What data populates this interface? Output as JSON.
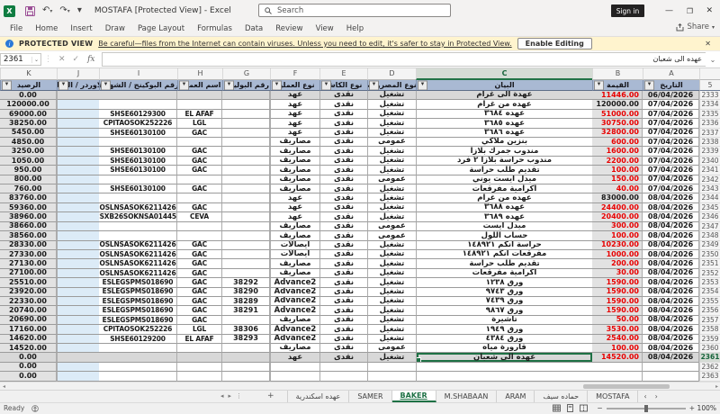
{
  "titlebar": {
    "title": "MOSTAFA  [Protected View] - Excel",
    "search_placeholder": "Search",
    "signin": "Sign in"
  },
  "menubar": {
    "tabs": [
      "File",
      "Home",
      "Insert",
      "Draw",
      "Page Layout",
      "Formulas",
      "Data",
      "Review",
      "View",
      "Help"
    ],
    "share": "Share"
  },
  "banner": {
    "label": "PROTECTED VIEW",
    "message": "Be careful—files from the Internet can contain viruses. Unless you need to edit, it's safer to stay in Protected View.",
    "button": "Enable Editing"
  },
  "formula_bar": {
    "name_box": "2361",
    "content": "عهده الى شعبان"
  },
  "grid": {
    "column_letters": [
      "A",
      "B",
      "C",
      "D",
      "E",
      "F",
      "G",
      "H",
      "I",
      "J",
      "K"
    ],
    "selected_column": "C",
    "header_row_number": "5",
    "headers": {
      "a": "التاريخ",
      "b": "القيمة",
      "c": "البيان",
      "d": "نوع المصروف",
      "e": "نوع الكاش",
      "f": "نوع العملية",
      "g": "رقم البوليصا",
      "h": "اسم العميل",
      "i": "رقم البوكينج / الشهادة",
      "j": "رقم الاوردر / النقلة min",
      "k": "الرصيد"
    },
    "rows": [
      {
        "n": "2333",
        "a": "06/04/2026",
        "b": "11446.00",
        "red": 1,
        "c": "عهدة الى غرام",
        "d": "تشغيل",
        "e": "نقدى",
        "f": "عهد",
        "k": "0.00",
        "shade": 1
      },
      {
        "n": "2334",
        "a": "07/04/2026",
        "b": "120000.00",
        "c": "عهده من غرام",
        "d": "تشغيل",
        "e": "نقدى",
        "f": "عهد",
        "k": "120000.00"
      },
      {
        "n": "2335",
        "a": "07/04/2026",
        "b": "51000.00",
        "red": 1,
        "c": "عهده ٣٦٨٤",
        "d": "تشغيل",
        "e": "نقدى",
        "f": "عهد",
        "h": "EL AFAF",
        "i": "SHSE60129300",
        "k": "69000.00"
      },
      {
        "n": "2336",
        "a": "07/04/2026",
        "b": "30750.00",
        "red": 1,
        "c": "عهده ٣٦٨٥",
        "d": "تشغيل",
        "e": "نقدى",
        "f": "عهد",
        "h": "LGL",
        "i": "CPITAOSOK252226",
        "k": "38250.00"
      },
      {
        "n": "2337",
        "a": "07/04/2026",
        "b": "32800.00",
        "red": 1,
        "c": "عهده ٣٦٨٦",
        "d": "تشغيل",
        "e": "نقدى",
        "f": "عهد",
        "h": "GAC",
        "i": "SHSE60130100",
        "k": "5450.00"
      },
      {
        "n": "2338",
        "a": "07/04/2026",
        "b": "600.00",
        "red": 1,
        "c": "بنزين ملاكي",
        "d": "عمومى",
        "e": "نقدى",
        "f": "مصاريف",
        "k": "4850.00"
      },
      {
        "n": "2339",
        "a": "07/04/2026",
        "b": "1600.00",
        "red": 1,
        "c": "مندوب جمرك بلازا",
        "d": "تشغيل",
        "e": "نقدى",
        "f": "مصاريف",
        "h": "GAC",
        "i": "SHSE60130100",
        "k": "3250.00"
      },
      {
        "n": "2340",
        "a": "07/04/2026",
        "b": "2200.00",
        "red": 1,
        "c": "مندوب حراسة بلازا ٢ فرد",
        "d": "تشغيل",
        "e": "نقدى",
        "f": "مصاريف",
        "h": "GAC",
        "i": "SHSE60130100",
        "k": "1050.00"
      },
      {
        "n": "2341",
        "a": "07/04/2026",
        "b": "100.00",
        "red": 1,
        "c": "تقديم طلب حراسة",
        "d": "تشغيل",
        "e": "نقدى",
        "f": "مصاريف",
        "h": "GAC",
        "i": "SHSE60130100",
        "k": "950.00"
      },
      {
        "n": "2342",
        "a": "07/04/2026",
        "b": "150.00",
        "red": 1,
        "c": "ميدل ايست يوني",
        "d": "عمومى",
        "e": "نقدى",
        "f": "مصاريف",
        "k": "800.00"
      },
      {
        "n": "2343",
        "a": "07/04/2026",
        "b": "40.00",
        "red": 1,
        "c": "اكرامية مفرقعات",
        "d": "تشغيل",
        "e": "نقدى",
        "f": "مصاريف",
        "h": "GAC",
        "i": "SHSE60130100",
        "k": "760.00"
      },
      {
        "n": "2344",
        "a": "08/04/2026",
        "b": "83000.00",
        "c": "عهده من غرام",
        "d": "تشغيل",
        "e": "نقدى",
        "f": "عهد",
        "k": "83760.00"
      },
      {
        "n": "2345",
        "a": "08/04/2026",
        "b": "24400.00",
        "red": 1,
        "c": "عهده ٣٦٨٨",
        "d": "تشغيل",
        "e": "نقدى",
        "f": "عهد",
        "h": "GAC",
        "i": "OSLNSASOK6211426",
        "k": "59360.00"
      },
      {
        "n": "2346",
        "a": "08/04/2026",
        "b": "20400.00",
        "red": 1,
        "c": "عهده ٣٦٨٩",
        "d": "تشغيل",
        "e": "نقدى",
        "f": "عهد",
        "h": "CEVA",
        "i": "CSXB26SOKNSA014455",
        "k": "38960.00"
      },
      {
        "n": "2347",
        "a": "08/04/2026",
        "b": "300.00",
        "red": 1,
        "c": "ميدل ايست",
        "d": "عمومى",
        "e": "نقدى",
        "f": "مصاريف",
        "k": "38660.00"
      },
      {
        "n": "2348",
        "a": "08/04/2026",
        "b": "100.00",
        "red": 1,
        "c": "حساب اللول",
        "d": "عمومى",
        "e": "نقدى",
        "f": "مصاريف",
        "k": "38560.00"
      },
      {
        "n": "2349",
        "a": "08/04/2026",
        "b": "10230.00",
        "red": 1,
        "c": "حراسة انكم ١٤٨٩٢١",
        "d": "تشغيل",
        "e": "نقدى",
        "f": "ايصالات",
        "h": "GAC",
        "i": "OSLNSASOK6211426",
        "k": "28330.00"
      },
      {
        "n": "2350",
        "a": "08/04/2026",
        "b": "1000.00",
        "red": 1,
        "c": "مفرقعات انكم ١٤٨٩٢١",
        "d": "تشغيل",
        "e": "نقدى",
        "f": "ايصالات",
        "h": "GAC",
        "i": "OSLNSASOK6211426",
        "k": "27330.00"
      },
      {
        "n": "2351",
        "a": "08/04/2026",
        "b": "200.00",
        "red": 1,
        "c": "تقديم طلب حراسة",
        "d": "تشغيل",
        "e": "نقدى",
        "f": "مصاريف",
        "h": "GAC",
        "i": "OSLNSASOK6211426",
        "k": "27130.00"
      },
      {
        "n": "2352",
        "a": "08/04/2026",
        "b": "30.00",
        "red": 1,
        "c": "اكرامية مفرقعات",
        "d": "تشغيل",
        "e": "نقدى",
        "f": "مصاريف",
        "h": "GAC",
        "i": "OSLNSASOK6211426",
        "k": "27100.00"
      },
      {
        "n": "2353",
        "a": "08/04/2026",
        "b": "1590.00",
        "red": 1,
        "c": "ورق ١٢٣٨",
        "d": "تشغيل",
        "e": "نقدى",
        "f": "Advance2",
        "g": "38292",
        "h": "GAC",
        "i": "ESLEGSPMS018690",
        "k": "25510.00"
      },
      {
        "n": "2354",
        "a": "08/04/2026",
        "b": "1590.00",
        "red": 1,
        "c": "ورق ٩٧٤٣",
        "d": "تشغيل",
        "e": "نقدى",
        "f": "Advance2",
        "g": "38290",
        "h": "GAC",
        "i": "ESLEGSPMS018690",
        "k": "23920.00"
      },
      {
        "n": "2355",
        "a": "08/04/2026",
        "b": "1590.00",
        "red": 1,
        "c": "ورق ٧٤٣٩",
        "d": "تشغيل",
        "e": "نقدى",
        "f": "Advance2",
        "g": "38289",
        "h": "GAC",
        "i": "ESLEGSPMS018690",
        "k": "22330.00"
      },
      {
        "n": "2356",
        "a": "08/04/2026",
        "b": "1590.00",
        "red": 1,
        "c": "ورق ٩٨٦٧",
        "d": "تشغيل",
        "e": "نقدى",
        "f": "Advance2",
        "g": "38291",
        "h": "GAC",
        "i": "ESLEGSPMS018690",
        "k": "20740.00"
      },
      {
        "n": "2357",
        "a": "08/04/2026",
        "b": "50.00",
        "red": 1,
        "c": "تأشيرة",
        "d": "تشغيل",
        "e": "نقدى",
        "f": "مصاريف",
        "h": "GAC",
        "i": "ESLEGSPMS018690",
        "k": "20690.00"
      },
      {
        "n": "2358",
        "a": "08/04/2026",
        "b": "3530.00",
        "red": 1,
        "c": "ورق ١٩٤٩",
        "d": "تشغيل",
        "e": "نقدى",
        "f": "Advance2",
        "g": "38306",
        "h": "LGL",
        "i": "CPITAOSOK252226",
        "k": "17160.00"
      },
      {
        "n": "2359",
        "a": "08/04/2026",
        "b": "2540.00",
        "red": 1,
        "c": "ورق ٤٣٨٤",
        "d": "تشغيل",
        "e": "نقدى",
        "f": "Advance2",
        "g": "38293",
        "h": "EL AFAF",
        "i": "SHSE60129200",
        "k": "14620.00"
      },
      {
        "n": "2360",
        "a": "08/04/2026",
        "b": "100.00",
        "red": 1,
        "c": "قارورة مياه",
        "d": "عمومى",
        "e": "نقدى",
        "f": "مصاريف",
        "k": "14520.00"
      },
      {
        "n": "2361",
        "a": "08/04/2026",
        "b": "14520.00",
        "red": 1,
        "c": "عهده الى شعبان",
        "d": "تشغيل",
        "e": "نقدى",
        "f": "عهد",
        "k": "0.00",
        "shade": 1,
        "sel": 1
      },
      {
        "n": "2362",
        "k": "0.00"
      },
      {
        "n": "2363",
        "k": "0.00"
      }
    ]
  },
  "sheet_tabs": {
    "items": [
      "عهده اسكندرية",
      "SAMER",
      "BAKER",
      "M.SHABAAN",
      "ARAM",
      "حماده سيف",
      "MOSTAFA"
    ],
    "active": "BAKER"
  },
  "status_bar": {
    "ready": "Ready",
    "zoom": "100%"
  },
  "colors": {
    "accent_green": "#217346",
    "value_red": "#E80000",
    "header_fill": "#A9B9D3",
    "order_column_fill": "#DCEBF7",
    "banner_fill": "#FFF4CE"
  },
  "glyphs": {
    "close": "✕",
    "min": "—",
    "restore": "❐",
    "undo": "↶",
    "redo": "↷",
    "dropdown": "▾",
    "chevron": "⌄",
    "cancel": "✕",
    "enter": "✓",
    "fx": "fx",
    "filter": "▼",
    "add": "+",
    "dots": "⋮",
    "nav_l": "◂",
    "nav_r": "▸",
    "tab_prev": "‹",
    "tab_next": "›",
    "minus": "−",
    "plus": "+",
    "x_logo": "X",
    "info": "i"
  }
}
